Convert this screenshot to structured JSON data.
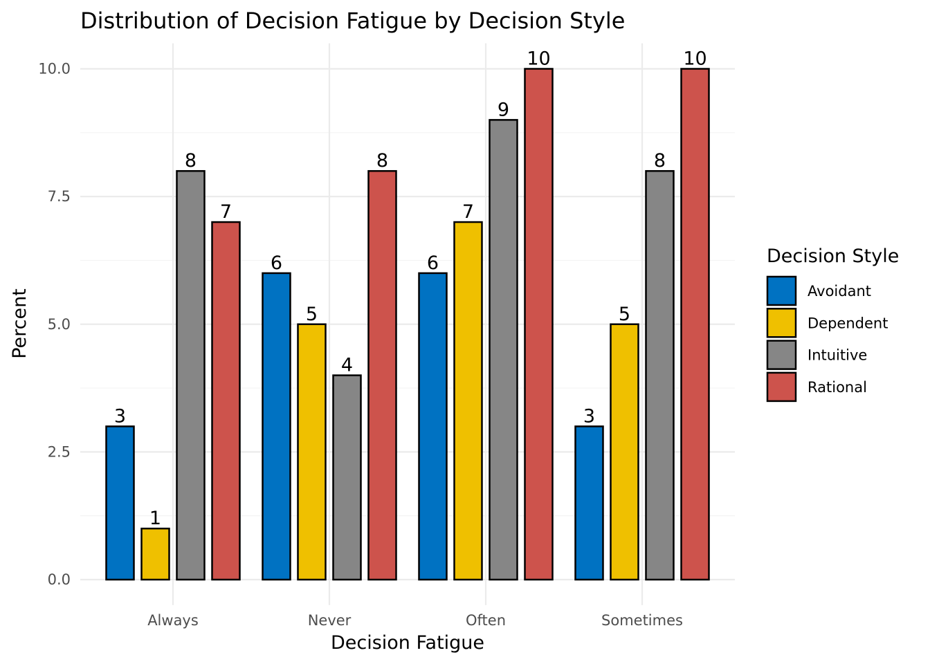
{
  "chart_data": {
    "type": "bar",
    "title": "Distribution of Decision Fatigue by Decision Style",
    "xlabel": "Decision Fatigue",
    "ylabel": "Percent",
    "categories": [
      "Always",
      "Never",
      "Often",
      "Sometimes"
    ],
    "series": [
      {
        "name": "Avoidant",
        "color": "#0072C2",
        "values": [
          3,
          6,
          6,
          3
        ]
      },
      {
        "name": "Dependent",
        "color": "#EFC000",
        "values": [
          1,
          5,
          7,
          5
        ]
      },
      {
        "name": "Intuitive",
        "color": "#868686",
        "values": [
          8,
          4,
          9,
          8
        ]
      },
      {
        "name": "Rational",
        "color": "#CD534C",
        "values": [
          7,
          8,
          10,
          10
        ]
      }
    ],
    "ylim": [
      0,
      10.5
    ],
    "yticks": [
      "0.0",
      "2.5",
      "5.0",
      "7.5",
      "10.0"
    ],
    "grid": true,
    "legend": {
      "title": "Decision Style",
      "position": "right"
    }
  }
}
